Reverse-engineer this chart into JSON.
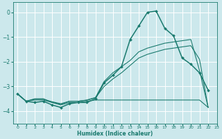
{
  "background_color": "#cce8ec",
  "grid_color": "#ffffff",
  "line_color": "#1a7a6e",
  "xlabel": "Humidex (Indice chaleur)",
  "xlim": [
    -0.5,
    23
  ],
  "ylim": [
    -4.5,
    0.4
  ],
  "yticks": [
    0,
    -1,
    -2,
    -3,
    -4
  ],
  "xticks": [
    0,
    1,
    2,
    3,
    4,
    5,
    6,
    7,
    8,
    9,
    10,
    11,
    12,
    13,
    14,
    15,
    16,
    17,
    18,
    19,
    20,
    21,
    22,
    23
  ],
  "series": [
    {
      "x": [
        0,
        1,
        2,
        3,
        4,
        5,
        6,
        7,
        8,
        9,
        10,
        11,
        12,
        13,
        14,
        15,
        16,
        17,
        18,
        19,
        20,
        21,
        22
      ],
      "y": [
        -3.3,
        -3.6,
        -3.65,
        -3.6,
        -3.75,
        -3.85,
        -3.7,
        -3.65,
        -3.65,
        -3.5,
        -2.85,
        -2.55,
        -2.2,
        -1.1,
        -0.55,
        0.0,
        0.05,
        -0.65,
        -0.95,
        -1.85,
        -2.1,
        -2.45,
        -3.15
      ],
      "marker": "D",
      "markersize": 2.0,
      "linewidth": 1.1
    },
    {
      "x": [
        0,
        1,
        2,
        3,
        4,
        5,
        6,
        7,
        8,
        9,
        10,
        11,
        12,
        13,
        14,
        15,
        16,
        17,
        18,
        19,
        20,
        21,
        22
      ],
      "y": [
        -3.3,
        -3.6,
        -3.5,
        -3.5,
        -3.65,
        -3.75,
        -3.65,
        -3.65,
        -3.6,
        -3.55,
        -3.55,
        -3.55,
        -3.55,
        -3.55,
        -3.55,
        -3.55,
        -3.55,
        -3.55,
        -3.55,
        -3.55,
        -3.55,
        -3.55,
        -3.85
      ],
      "marker": null,
      "markersize": 0,
      "linewidth": 0.8
    },
    {
      "x": [
        0,
        1,
        2,
        3,
        4,
        5,
        6,
        7,
        8,
        9,
        10,
        11,
        12,
        13,
        14,
        15,
        16,
        17,
        18,
        19,
        20,
        21,
        22
      ],
      "y": [
        -3.3,
        -3.6,
        -3.55,
        -3.55,
        -3.65,
        -3.72,
        -3.6,
        -3.6,
        -3.55,
        -3.45,
        -2.8,
        -2.45,
        -2.2,
        -1.95,
        -1.6,
        -1.45,
        -1.35,
        -1.25,
        -1.2,
        -1.15,
        -1.1,
        -2.35,
        -3.85
      ],
      "marker": null,
      "markersize": 0,
      "linewidth": 0.8
    },
    {
      "x": [
        0,
        1,
        2,
        3,
        4,
        5,
        6,
        7,
        8,
        9,
        10,
        11,
        12,
        13,
        14,
        15,
        16,
        17,
        18,
        19,
        20,
        21,
        22
      ],
      "y": [
        -3.3,
        -3.6,
        -3.52,
        -3.52,
        -3.62,
        -3.7,
        -3.6,
        -3.6,
        -3.56,
        -3.46,
        -3.0,
        -2.7,
        -2.45,
        -2.15,
        -1.85,
        -1.7,
        -1.6,
        -1.5,
        -1.45,
        -1.4,
        -1.35,
        -1.9,
        -3.85
      ],
      "marker": null,
      "markersize": 0,
      "linewidth": 0.8
    }
  ]
}
